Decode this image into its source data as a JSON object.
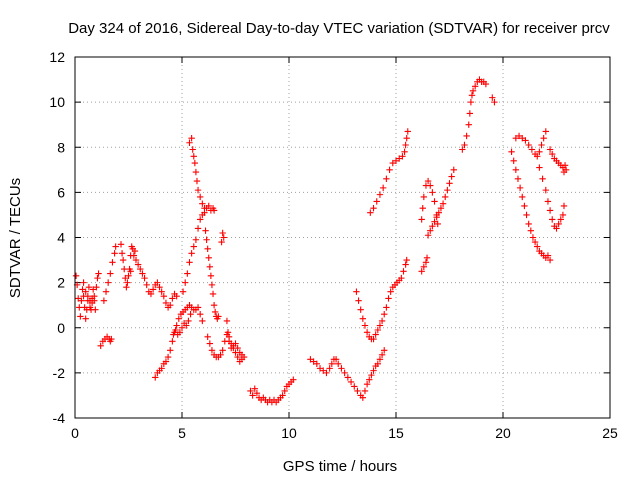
{
  "chart_data": {
    "type": "scatter",
    "title": "Day 324 of 2016, Sidereal Day-to-day VTEC variation (SDTVAR) for receiver prcv",
    "xlabel": "GPS time / hours",
    "ylabel": "SDTVAR / TECUs",
    "xlim": [
      0,
      25
    ],
    "ylim": [
      -4,
      12
    ],
    "x_ticks": [
      "0",
      "5",
      "10",
      "15",
      "20",
      "25"
    ],
    "y_ticks": [
      "-4",
      "-2",
      "0",
      "2",
      "4",
      "6",
      "8",
      "10",
      "12"
    ],
    "grid": true,
    "marker": "plus",
    "color": "#ff0000",
    "segments": [
      [
        [
          0.05,
          2.3
        ],
        [
          0.1,
          1.9
        ],
        [
          0.15,
          1.3
        ],
        [
          0.2,
          0.9
        ],
        [
          0.25,
          0.5
        ],
        [
          0.3,
          1.2
        ],
        [
          0.35,
          1.7
        ],
        [
          0.4,
          1.4
        ],
        [
          0.45,
          0.9
        ],
        [
          0.5,
          0.4
        ],
        [
          0.55,
          0.8
        ],
        [
          0.6,
          1.4
        ],
        [
          0.65,
          1.8
        ],
        [
          0.7,
          1.2
        ],
        [
          0.75,
          0.8
        ],
        [
          0.8,
          1.3
        ],
        [
          0.85,
          1.7
        ],
        [
          0.9,
          1.2
        ],
        [
          0.95,
          0.8
        ]
      ],
      [
        [
          0.4,
          2.0
        ],
        [
          0.5,
          1.6
        ],
        [
          0.6,
          1.2
        ],
        [
          0.7,
          0.9
        ],
        [
          0.8,
          1.1
        ],
        [
          0.9,
          1.4
        ],
        [
          1.0,
          1.8
        ],
        [
          1.05,
          2.2
        ],
        [
          1.1,
          2.4
        ]
      ],
      [
        [
          1.2,
          -0.8
        ],
        [
          1.3,
          -0.6
        ],
        [
          1.4,
          -0.5
        ],
        [
          1.5,
          -0.4
        ],
        [
          1.6,
          -0.5
        ],
        [
          1.65,
          -0.6
        ],
        [
          1.7,
          -0.5
        ]
      ],
      [
        [
          1.35,
          1.2
        ],
        [
          1.45,
          1.6
        ],
        [
          1.55,
          2.0
        ],
        [
          1.65,
          2.4
        ],
        [
          1.75,
          2.9
        ],
        [
          1.85,
          3.3
        ],
        [
          1.9,
          3.6
        ]
      ],
      [
        [
          2.15,
          3.7
        ],
        [
          2.2,
          3.3
        ],
        [
          2.25,
          3.0
        ],
        [
          2.3,
          2.6
        ],
        [
          2.35,
          2.2
        ],
        [
          2.4,
          1.8
        ],
        [
          2.45,
          2.0
        ],
        [
          2.5,
          2.3
        ],
        [
          2.55,
          2.6
        ],
        [
          2.6,
          2.5
        ]
      ],
      [
        [
          2.6,
          3.2
        ],
        [
          2.65,
          3.6
        ],
        [
          2.7,
          3.5
        ],
        [
          2.75,
          3.2
        ],
        [
          2.8,
          3.4
        ],
        [
          2.85,
          3.0
        ],
        [
          2.95,
          2.8
        ],
        [
          3.05,
          2.6
        ],
        [
          3.15,
          2.4
        ],
        [
          3.25,
          2.2
        ],
        [
          3.35,
          1.9
        ],
        [
          3.45,
          1.6
        ],
        [
          3.55,
          1.5
        ],
        [
          3.65,
          1.7
        ],
        [
          3.75,
          1.9
        ],
        [
          3.85,
          2.0
        ],
        [
          3.95,
          1.8
        ],
        [
          4.05,
          1.6
        ],
        [
          4.15,
          1.4
        ],
        [
          4.25,
          1.1
        ],
        [
          4.35,
          0.9
        ],
        [
          4.45,
          1.0
        ],
        [
          4.55,
          1.3
        ],
        [
          4.65,
          1.5
        ],
        [
          4.75,
          1.4
        ]
      ],
      [
        [
          3.75,
          -2.2
        ],
        [
          3.85,
          -2.0
        ],
        [
          3.95,
          -1.9
        ],
        [
          4.05,
          -1.8
        ],
        [
          4.15,
          -1.6
        ],
        [
          4.25,
          -1.5
        ],
        [
          4.35,
          -1.3
        ],
        [
          4.45,
          -1.0
        ],
        [
          4.55,
          -0.6
        ],
        [
          4.65,
          -0.2
        ],
        [
          4.75,
          0.1
        ],
        [
          4.85,
          0.4
        ],
        [
          4.95,
          0.6
        ],
        [
          5.05,
          0.7
        ],
        [
          5.15,
          0.8
        ],
        [
          5.25,
          0.9
        ],
        [
          5.35,
          1.0
        ],
        [
          5.45,
          0.9
        ],
        [
          5.55,
          0.8
        ],
        [
          5.65,
          0.8
        ],
        [
          5.75,
          0.9
        ],
        [
          5.85,
          0.6
        ],
        [
          5.95,
          0.3
        ]
      ],
      [
        [
          4.6,
          -0.3
        ],
        [
          4.7,
          -0.1
        ],
        [
          4.8,
          -0.3
        ],
        [
          4.9,
          -0.2
        ],
        [
          5.0,
          0.0
        ],
        [
          5.1,
          0.2
        ],
        [
          5.2,
          0.1
        ],
        [
          5.3,
          0.3
        ],
        [
          5.4,
          0.6
        ]
      ],
      [
        [
          5.05,
          1.6
        ],
        [
          5.15,
          2.0
        ],
        [
          5.25,
          2.4
        ],
        [
          5.35,
          2.9
        ],
        [
          5.45,
          3.3
        ],
        [
          5.55,
          3.6
        ],
        [
          5.65,
          3.9
        ],
        [
          5.75,
          4.4
        ],
        [
          5.85,
          4.8
        ],
        [
          5.95,
          5.0
        ],
        [
          6.05,
          5.1
        ]
      ],
      [
        [
          5.35,
          8.2
        ],
        [
          5.45,
          8.4
        ],
        [
          5.5,
          7.9
        ],
        [
          5.55,
          7.6
        ],
        [
          5.6,
          7.3
        ],
        [
          5.65,
          6.9
        ],
        [
          5.7,
          6.5
        ],
        [
          5.75,
          6.1
        ],
        [
          5.85,
          5.8
        ],
        [
          5.95,
          5.5
        ],
        [
          6.05,
          5.3
        ],
        [
          6.15,
          5.3
        ],
        [
          6.25,
          5.4
        ],
        [
          6.35,
          5.2
        ],
        [
          6.45,
          5.3
        ],
        [
          6.5,
          5.2
        ]
      ],
      [
        [
          6.1,
          4.3
        ],
        [
          6.15,
          3.9
        ],
        [
          6.2,
          3.5
        ],
        [
          6.25,
          3.1
        ],
        [
          6.3,
          2.7
        ],
        [
          6.35,
          2.3
        ],
        [
          6.4,
          1.9
        ],
        [
          6.45,
          1.5
        ],
        [
          6.5,
          1.0
        ],
        [
          6.55,
          0.7
        ],
        [
          6.6,
          0.5
        ],
        [
          6.65,
          0.4
        ],
        [
          6.7,
          0.5
        ]
      ],
      [
        [
          6.85,
          3.8
        ],
        [
          6.9,
          4.2
        ],
        [
          6.95,
          4.0
        ]
      ],
      [
        [
          6.2,
          -0.4
        ],
        [
          6.3,
          -0.7
        ],
        [
          6.4,
          -1.0
        ],
        [
          6.5,
          -1.2
        ],
        [
          6.6,
          -1.3
        ],
        [
          6.7,
          -1.3
        ],
        [
          6.8,
          -1.2
        ],
        [
          6.9,
          -1.0
        ],
        [
          7.0,
          -0.6
        ],
        [
          7.1,
          -0.3
        ],
        [
          7.2,
          -0.4
        ],
        [
          7.3,
          -0.7
        ],
        [
          7.4,
          -0.9
        ],
        [
          7.5,
          -1.1
        ],
        [
          7.6,
          -1.3
        ],
        [
          7.7,
          -1.5
        ],
        [
          7.8,
          -1.4
        ],
        [
          7.9,
          -1.3
        ]
      ],
      [
        [
          7.1,
          0.3
        ],
        [
          7.15,
          -0.2
        ],
        [
          7.2,
          -0.6
        ],
        [
          7.3,
          -0.9
        ],
        [
          7.4,
          -0.8
        ],
        [
          7.5,
          -0.7
        ],
        [
          7.6,
          -0.9
        ],
        [
          7.7,
          -1.1
        ],
        [
          7.8,
          -1.2
        ]
      ],
      [
        [
          8.2,
          -2.8
        ],
        [
          8.3,
          -3.0
        ],
        [
          8.4,
          -2.7
        ],
        [
          8.5,
          -2.9
        ],
        [
          8.6,
          -3.1
        ],
        [
          8.7,
          -3.2
        ],
        [
          8.8,
          -3.1
        ],
        [
          8.9,
          -3.2
        ],
        [
          9.0,
          -3.3
        ],
        [
          9.1,
          -3.2
        ],
        [
          9.2,
          -3.3
        ],
        [
          9.3,
          -3.2
        ],
        [
          9.4,
          -3.3
        ],
        [
          9.5,
          -3.2
        ],
        [
          9.6,
          -3.1
        ],
        [
          9.7,
          -3.0
        ],
        [
          9.8,
          -2.8
        ],
        [
          9.9,
          -2.6
        ],
        [
          10.0,
          -2.5
        ],
        [
          10.1,
          -2.4
        ],
        [
          10.2,
          -2.3
        ]
      ],
      [
        [
          11.0,
          -1.4
        ],
        [
          11.15,
          -1.5
        ],
        [
          11.3,
          -1.6
        ],
        [
          11.45,
          -1.8
        ],
        [
          11.6,
          -1.9
        ],
        [
          11.75,
          -2.0
        ],
        [
          11.9,
          -1.8
        ],
        [
          12.0,
          -1.6
        ],
        [
          12.1,
          -1.4
        ],
        [
          12.2,
          -1.4
        ],
        [
          12.3,
          -1.6
        ],
        [
          12.45,
          -1.8
        ],
        [
          12.6,
          -2.0
        ],
        [
          12.75,
          -2.2
        ],
        [
          12.9,
          -2.4
        ],
        [
          13.05,
          -2.6
        ],
        [
          13.2,
          -2.8
        ],
        [
          13.35,
          -3.0
        ],
        [
          13.45,
          -3.1
        ],
        [
          13.55,
          -2.8
        ],
        [
          13.65,
          -2.5
        ],
        [
          13.75,
          -2.3
        ],
        [
          13.85,
          -2.1
        ],
        [
          13.95,
          -1.9
        ],
        [
          14.05,
          -1.7
        ],
        [
          14.15,
          -1.6
        ],
        [
          14.25,
          -1.4
        ],
        [
          14.35,
          -1.2
        ],
        [
          14.45,
          -1.0
        ]
      ],
      [
        [
          13.15,
          1.6
        ],
        [
          13.25,
          1.2
        ],
        [
          13.35,
          0.8
        ],
        [
          13.45,
          0.4
        ],
        [
          13.55,
          0.1
        ],
        [
          13.65,
          -0.2
        ],
        [
          13.75,
          -0.4
        ],
        [
          13.85,
          -0.5
        ],
        [
          13.95,
          -0.5
        ],
        [
          14.05,
          -0.3
        ],
        [
          14.15,
          -0.1
        ],
        [
          14.25,
          0.1
        ],
        [
          14.35,
          0.3
        ],
        [
          14.45,
          0.6
        ],
        [
          14.55,
          0.9
        ],
        [
          14.65,
          1.3
        ],
        [
          14.75,
          1.6
        ],
        [
          14.85,
          1.8
        ],
        [
          14.95,
          1.9
        ],
        [
          15.05,
          2.0
        ],
        [
          15.15,
          2.1
        ],
        [
          15.25,
          2.2
        ],
        [
          15.35,
          2.5
        ],
        [
          15.45,
          2.8
        ],
        [
          15.5,
          3.0
        ]
      ],
      [
        [
          13.8,
          5.1
        ],
        [
          13.95,
          5.3
        ],
        [
          14.1,
          5.6
        ],
        [
          14.25,
          5.9
        ],
        [
          14.4,
          6.2
        ],
        [
          14.55,
          6.6
        ],
        [
          14.7,
          7.0
        ],
        [
          14.85,
          7.3
        ],
        [
          15.0,
          7.4
        ],
        [
          15.15,
          7.5
        ],
        [
          15.3,
          7.6
        ],
        [
          15.4,
          7.8
        ],
        [
          15.45,
          8.1
        ],
        [
          15.5,
          8.4
        ],
        [
          15.55,
          8.7
        ]
      ],
      [
        [
          16.2,
          2.5
        ],
        [
          16.3,
          2.7
        ],
        [
          16.4,
          2.9
        ],
        [
          16.45,
          3.1
        ]
      ],
      [
        [
          16.2,
          4.8
        ],
        [
          16.25,
          5.3
        ],
        [
          16.3,
          5.8
        ],
        [
          16.4,
          6.3
        ],
        [
          16.5,
          6.5
        ],
        [
          16.6,
          6.3
        ],
        [
          16.7,
          6.0
        ],
        [
          16.8,
          5.6
        ],
        [
          16.9,
          5.0
        ],
        [
          16.95,
          4.6
        ]
      ],
      [
        [
          16.5,
          4.1
        ],
        [
          16.6,
          4.3
        ],
        [
          16.7,
          4.5
        ],
        [
          16.8,
          4.7
        ],
        [
          16.9,
          4.9
        ],
        [
          17.0,
          5.1
        ],
        [
          17.1,
          5.3
        ],
        [
          17.2,
          5.5
        ],
        [
          17.3,
          5.8
        ],
        [
          17.4,
          6.1
        ],
        [
          17.5,
          6.4
        ],
        [
          17.6,
          6.7
        ],
        [
          17.7,
          7.0
        ]
      ],
      [
        [
          18.1,
          7.9
        ],
        [
          18.2,
          8.1
        ],
        [
          18.3,
          8.5
        ],
        [
          18.4,
          9.0
        ],
        [
          18.45,
          9.5
        ],
        [
          18.5,
          10.0
        ],
        [
          18.55,
          10.3
        ],
        [
          18.6,
          10.5
        ],
        [
          18.7,
          10.7
        ],
        [
          18.8,
          10.9
        ],
        [
          18.9,
          11.0
        ],
        [
          19.0,
          10.9
        ],
        [
          19.1,
          10.9
        ],
        [
          19.2,
          10.8
        ]
      ],
      [
        [
          19.5,
          10.2
        ],
        [
          19.6,
          10.0
        ]
      ],
      [
        [
          20.4,
          7.8
        ],
        [
          20.5,
          7.4
        ],
        [
          20.6,
          7.0
        ],
        [
          20.7,
          6.6
        ],
        [
          20.8,
          6.2
        ],
        [
          20.9,
          5.8
        ],
        [
          21.0,
          5.4
        ],
        [
          21.1,
          5.0
        ],
        [
          21.2,
          4.6
        ],
        [
          21.3,
          4.3
        ],
        [
          21.4,
          4.0
        ],
        [
          21.5,
          3.8
        ],
        [
          21.6,
          3.6
        ],
        [
          21.7,
          3.4
        ],
        [
          21.8,
          3.3
        ],
        [
          21.9,
          3.2
        ],
        [
          22.0,
          3.1
        ],
        [
          22.1,
          3.2
        ],
        [
          22.2,
          3.0
        ]
      ],
      [
        [
          20.6,
          8.4
        ],
        [
          20.75,
          8.5
        ],
        [
          20.9,
          8.4
        ],
        [
          21.05,
          8.3
        ],
        [
          21.2,
          8.1
        ],
        [
          21.35,
          7.9
        ],
        [
          21.5,
          7.7
        ],
        [
          21.6,
          7.6
        ],
        [
          21.7,
          7.8
        ],
        [
          21.8,
          8.1
        ],
        [
          21.9,
          8.4
        ],
        [
          22.0,
          8.7
        ]
      ],
      [
        [
          21.7,
          7.1
        ],
        [
          21.85,
          6.6
        ],
        [
          22.0,
          6.1
        ],
        [
          22.1,
          5.6
        ],
        [
          22.2,
          5.2
        ],
        [
          22.3,
          4.8
        ],
        [
          22.4,
          4.5
        ],
        [
          22.5,
          4.4
        ],
        [
          22.6,
          4.6
        ],
        [
          22.7,
          4.8
        ],
        [
          22.8,
          5.0
        ],
        [
          22.85,
          5.4
        ]
      ],
      [
        [
          22.2,
          7.9
        ],
        [
          22.3,
          7.7
        ],
        [
          22.4,
          7.5
        ],
        [
          22.5,
          7.4
        ],
        [
          22.6,
          7.3
        ],
        [
          22.7,
          7.2
        ],
        [
          22.8,
          7.1
        ],
        [
          22.85,
          6.9
        ],
        [
          22.9,
          7.2
        ],
        [
          22.95,
          7.0
        ]
      ]
    ]
  }
}
